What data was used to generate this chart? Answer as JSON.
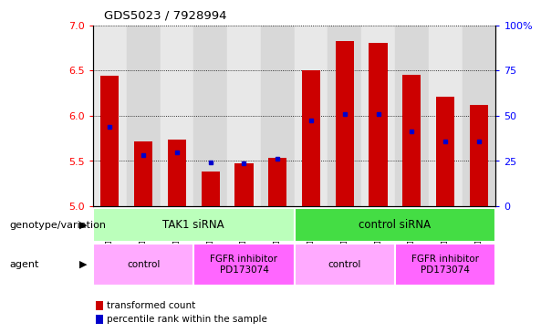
{
  "title": "GDS5023 / 7928994",
  "samples": [
    "GSM1267159",
    "GSM1267160",
    "GSM1267161",
    "GSM1267156",
    "GSM1267157",
    "GSM1267158",
    "GSM1267150",
    "GSM1267151",
    "GSM1267152",
    "GSM1267153",
    "GSM1267154",
    "GSM1267155"
  ],
  "red_values": [
    6.44,
    5.72,
    5.74,
    5.38,
    5.47,
    5.54,
    6.5,
    6.82,
    6.8,
    6.45,
    6.21,
    6.12
  ],
  "blue_values": [
    5.88,
    5.57,
    5.6,
    5.48,
    5.47,
    5.53,
    5.95,
    6.02,
    6.02,
    5.83,
    5.72,
    5.72
  ],
  "ylim_left": [
    5.0,
    7.0
  ],
  "ylim_right": [
    0,
    100
  ],
  "yticks_left": [
    5.0,
    5.5,
    6.0,
    6.5,
    7.0
  ],
  "yticks_right": [
    0,
    25,
    50,
    75,
    100
  ],
  "bar_color": "#cc0000",
  "dot_color": "#0000cc",
  "plot_bg": "#ffffff",
  "genotype_groups": [
    {
      "label": "TAK1 siRNA",
      "start": 0,
      "end": 6,
      "color": "#bbffbb"
    },
    {
      "label": "control siRNA",
      "start": 6,
      "end": 12,
      "color": "#44dd44"
    }
  ],
  "agent_groups": [
    {
      "label": "control",
      "start": 0,
      "end": 3,
      "color": "#ffaaff"
    },
    {
      "label": "FGFR inhibitor\nPD173074",
      "start": 3,
      "end": 6,
      "color": "#ff66ff"
    },
    {
      "label": "control",
      "start": 6,
      "end": 9,
      "color": "#ffaaff"
    },
    {
      "label": "FGFR inhibitor\nPD173074",
      "start": 9,
      "end": 12,
      "color": "#ff66ff"
    }
  ],
  "legend_items": [
    {
      "label": "transformed count",
      "color": "#cc0000"
    },
    {
      "label": "percentile rank within the sample",
      "color": "#0000cc"
    }
  ],
  "geno_label": "genotype/variation",
  "agent_label": "agent",
  "bar_width": 0.55,
  "bar_bottom": 5.0,
  "col_bg_even": "#e8e8e8",
  "col_bg_odd": "#d8d8d8"
}
